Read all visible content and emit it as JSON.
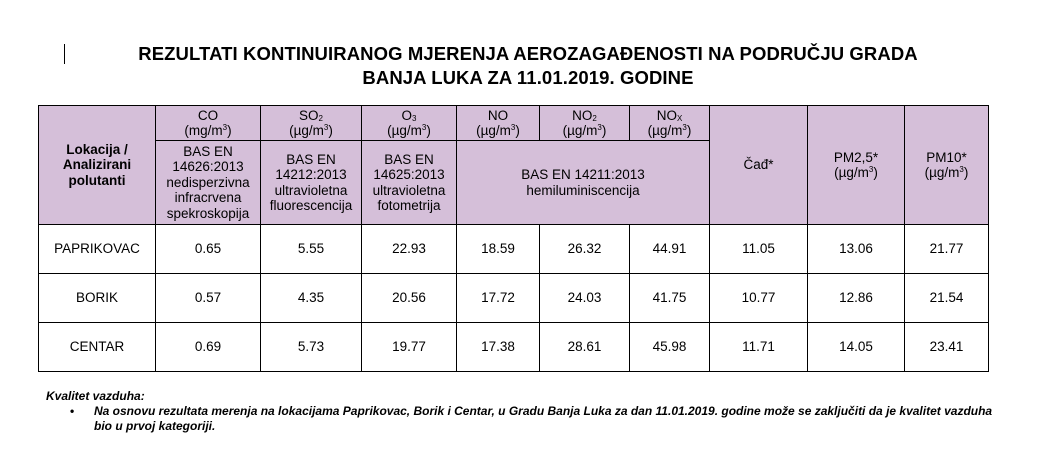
{
  "title": {
    "line1": "REZULTATI KONTINUIRANOG MJERENJA AEROZAGAĐENOSTI NA PODRUČJU GRADA",
    "line2": "BANJA LUKA ZA 11.01.2019. GODINE"
  },
  "table": {
    "corner": {
      "line1": "Lokacija /",
      "line2": "Analizirani",
      "line3": "polutanti"
    },
    "pollutants": {
      "co": {
        "name": "CO",
        "unit_pre": "(mg/m",
        "unit_sup": "3",
        "unit_post": ")"
      },
      "so2": {
        "name": "SO",
        "sub": "2",
        "unit_pre": "(µg/m",
        "unit_sup": "3",
        "unit_post": ")"
      },
      "o3": {
        "name": "O",
        "sub": "3",
        "unit_pre": "(µg/m",
        "unit_sup": "3",
        "unit_post": ")"
      },
      "no": {
        "name": "NO",
        "unit_pre": "(µg/m",
        "unit_sup": "3",
        "unit_post": ")"
      },
      "no2": {
        "name": "NO",
        "sub": "2",
        "unit_pre": "(µg/m",
        "unit_sup": "3",
        "unit_post": ")"
      },
      "nox": {
        "name": "NO",
        "sub": "X",
        "unit_pre": "(µg/m",
        "unit_sup": "3",
        "unit_post": ")"
      },
      "cad": {
        "name": "Čađ*"
      },
      "pm25": {
        "name": "PM2,5*",
        "unit_pre": "(µg/m",
        "unit_sup": "3",
        "unit_post": ")"
      },
      "pm10": {
        "name": "PM10*",
        "unit_pre": "(µg/m",
        "unit_sup": "3",
        "unit_post": ")"
      }
    },
    "methods": {
      "co": [
        "BAS EN",
        "14626:2013",
        "nedisperzivna",
        "infracrvena",
        "spekroskopija"
      ],
      "so2": [
        "BAS EN",
        "14212:2013",
        "ultravioletna",
        "fluorescencija"
      ],
      "o3": [
        "BAS EN",
        "14625:2013",
        "ultravioletna",
        "fotometrija"
      ],
      "nox": [
        "BAS EN 14211:2013",
        "hemiluminiscencija"
      ]
    },
    "rows": [
      {
        "location": "PAPRIKOVAC",
        "values": [
          "0.65",
          "5.55",
          "22.93",
          "18.59",
          "26.32",
          "44.91",
          "11.05",
          "13.06",
          "21.77"
        ]
      },
      {
        "location": "BORIK",
        "values": [
          "0.57",
          "4.35",
          "20.56",
          "17.72",
          "24.03",
          "41.75",
          "10.77",
          "12.86",
          "21.54"
        ]
      },
      {
        "location": "CENTAR",
        "values": [
          "0.69",
          "5.73",
          "19.77",
          "17.38",
          "28.61",
          "45.98",
          "11.71",
          "14.05",
          "23.41"
        ]
      }
    ]
  },
  "notes": {
    "heading": "Kvalitet vazduha:",
    "bullet_symbol": "•",
    "text": "Na osnovu rezultata merenja na lokacijama Paprikovac, Borik i Centar, u Gradu Banja Luka za dan 11.01.2019. godine može se zaključiti da je kvalitet vazduha bio u prvoj kategoriji."
  },
  "colors": {
    "header_bg": "#d5bfd9",
    "border": "#000000"
  }
}
